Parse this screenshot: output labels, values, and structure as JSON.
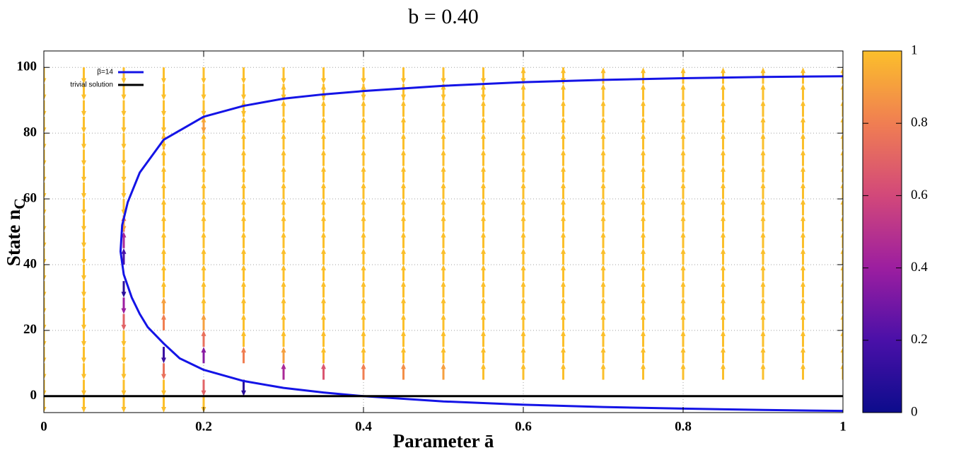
{
  "chart_data": {
    "type": "line",
    "title": "b = 0.40",
    "xlabel": "Parameter ā",
    "ylabel": {
      "text": "State n",
      "subscript": "C"
    },
    "xlim": [
      0,
      1
    ],
    "ylim": [
      -5,
      105
    ],
    "xticks": [
      0,
      0.2,
      0.4,
      0.6,
      0.8,
      1
    ],
    "yticks": [
      0,
      20,
      40,
      60,
      80,
      100
    ],
    "grid": true,
    "legend": "top left",
    "series": [
      {
        "name": "β=14",
        "color": "#1414e6",
        "x": [
          1.0,
          0.9,
          0.8,
          0.7,
          0.6,
          0.5,
          0.4,
          0.35,
          0.3,
          0.25,
          0.2,
          0.17,
          0.15,
          0.13,
          0.12,
          0.11,
          0.1,
          0.096,
          0.098,
          0.105,
          0.12,
          0.15,
          0.2,
          0.25,
          0.3,
          0.35,
          0.4,
          0.5,
          0.6,
          0.7,
          0.8,
          0.9,
          1.0
        ],
        "values": [
          -4.5,
          -4.2,
          -3.8,
          -3.3,
          -2.6,
          -1.6,
          0,
          1.1,
          2.5,
          4.6,
          8,
          11.5,
          16,
          21,
          25,
          30,
          37,
          44,
          52,
          59,
          68,
          78,
          85,
          88.3,
          90.5,
          91.8,
          92.8,
          94.4,
          95.5,
          96.2,
          96.7,
          97.1,
          97.3
        ]
      },
      {
        "name": "trivial solution",
        "color": "#000000",
        "x": [
          0,
          1
        ],
        "values": [
          0,
          0
        ]
      }
    ],
    "field": {
      "x": [
        0,
        0.05,
        0.1,
        0.15,
        0.2,
        0.25,
        0.3,
        0.35,
        0.4,
        0.45,
        0.5,
        0.55,
        0.6,
        0.65,
        0.7,
        0.75,
        0.8,
        0.85,
        0.9,
        0.95,
        1
      ],
      "y": [
        0,
        5,
        10,
        15,
        20,
        25,
        30,
        35,
        40,
        45,
        50,
        55,
        60,
        65,
        70,
        75,
        80,
        85,
        90,
        95,
        100
      ],
      "direction": [
        [
          -1,
          -1,
          -1,
          -1,
          -1,
          -1,
          -1,
          -1,
          -1,
          -1,
          -1,
          -1,
          -1,
          -1,
          -1,
          -1,
          -1,
          -1,
          -1,
          -1,
          -1
        ],
        [
          -1,
          -1,
          -1,
          -1,
          -1,
          -1,
          -1,
          -1,
          -1,
          -1,
          -1,
          -1,
          -1,
          -1,
          -1,
          -1,
          -1,
          -1,
          -1,
          -1,
          -1
        ],
        [
          -1,
          -1,
          -1,
          -1,
          -1,
          -1,
          -1,
          -1,
          1,
          1,
          1,
          -1,
          -1,
          -1,
          -1,
          -1,
          -1,
          -1,
          -1,
          -1,
          -1
        ],
        [
          -1,
          -1,
          -1,
          -1,
          1,
          1,
          1,
          1,
          1,
          1,
          1,
          1,
          1,
          1,
          1,
          1,
          -1,
          -1,
          -1,
          -1,
          -1
        ],
        [
          -1,
          -1,
          1,
          1,
          1,
          1,
          1,
          1,
          1,
          1,
          1,
          1,
          1,
          1,
          1,
          1,
          1,
          -1,
          -1,
          -1,
          -1
        ],
        [
          null,
          -1,
          1,
          1,
          1,
          1,
          1,
          1,
          1,
          1,
          1,
          1,
          1,
          1,
          1,
          1,
          1,
          1,
          -1,
          -1,
          -1
        ],
        [
          null,
          1,
          1,
          1,
          1,
          1,
          1,
          1,
          1,
          1,
          1,
          1,
          1,
          1,
          1,
          1,
          1,
          1,
          1,
          -1,
          -1
        ],
        [
          null,
          1,
          1,
          1,
          1,
          1,
          1,
          1,
          1,
          1,
          1,
          1,
          1,
          1,
          1,
          1,
          1,
          1,
          1,
          -1,
          -1
        ],
        [
          null,
          1,
          1,
          1,
          1,
          1,
          1,
          1,
          1,
          1,
          1,
          1,
          1,
          1,
          1,
          1,
          1,
          1,
          1,
          -1,
          -1
        ],
        [
          null,
          1,
          1,
          1,
          1,
          1,
          1,
          1,
          1,
          1,
          1,
          1,
          1,
          1,
          1,
          1,
          1,
          1,
          1,
          -1,
          -1
        ],
        [
          null,
          1,
          1,
          1,
          1,
          1,
          1,
          1,
          1,
          1,
          1,
          1,
          1,
          1,
          1,
          1,
          1,
          1,
          1,
          -1,
          -1
        ],
        [
          null,
          1,
          1,
          1,
          1,
          1,
          1,
          1,
          1,
          1,
          1,
          1,
          1,
          1,
          1,
          1,
          1,
          1,
          1,
          -1,
          -1
        ],
        [
          null,
          1,
          1,
          1,
          1,
          1,
          1,
          1,
          1,
          1,
          1,
          1,
          1,
          1,
          1,
          1,
          1,
          1,
          1,
          1,
          -1
        ],
        [
          null,
          1,
          1,
          1,
          1,
          1,
          1,
          1,
          1,
          1,
          1,
          1,
          1,
          1,
          1,
          1,
          1,
          1,
          1,
          1,
          -1
        ],
        [
          null,
          1,
          1,
          1,
          1,
          1,
          1,
          1,
          1,
          1,
          1,
          1,
          1,
          1,
          1,
          1,
          1,
          1,
          1,
          1,
          null
        ],
        [
          null,
          1,
          1,
          1,
          1,
          1,
          1,
          1,
          1,
          1,
          1,
          1,
          1,
          1,
          1,
          1,
          1,
          1,
          1,
          1,
          null
        ],
        [
          null,
          1,
          1,
          1,
          1,
          1,
          1,
          1,
          1,
          1,
          1,
          1,
          1,
          1,
          1,
          1,
          1,
          1,
          1,
          1,
          null
        ],
        [
          null,
          1,
          1,
          1,
          1,
          1,
          1,
          1,
          1,
          1,
          1,
          1,
          1,
          1,
          1,
          1,
          1,
          1,
          1,
          1,
          null
        ],
        [
          null,
          1,
          1,
          1,
          1,
          1,
          1,
          1,
          1,
          1,
          1,
          1,
          1,
          1,
          1,
          1,
          1,
          1,
          1,
          1,
          null
        ],
        [
          null,
          1,
          1,
          1,
          1,
          1,
          1,
          1,
          1,
          1,
          1,
          1,
          1,
          1,
          1,
          1,
          1,
          1,
          1,
          1,
          null
        ],
        [
          null,
          1,
          1,
          1,
          1,
          1,
          1,
          1,
          1,
          1,
          1,
          1,
          1,
          1,
          1,
          1,
          1,
          1,
          1,
          1,
          null
        ]
      ],
      "magnitude": [
        [
          1,
          1,
          1,
          1,
          1,
          1,
          1,
          1,
          1,
          1,
          1,
          1,
          1,
          1,
          1,
          1,
          1,
          1,
          1,
          1,
          1
        ],
        [
          1,
          1,
          1,
          1,
          1,
          1,
          1,
          1,
          1,
          1,
          1,
          1,
          1,
          1,
          1,
          1,
          1,
          1,
          1,
          1,
          1
        ],
        [
          1,
          1,
          1,
          1,
          1,
          0.7,
          0.4,
          0.1,
          0.2,
          0.45,
          0.7,
          0.9,
          1,
          1,
          1,
          1,
          1,
          1,
          1,
          1,
          1
        ],
        [
          1,
          1,
          0.75,
          0.15,
          0.8,
          0.9,
          1,
          1,
          1,
          1,
          1,
          1,
          1,
          1,
          1,
          0.9,
          1,
          1,
          1,
          1,
          1
        ],
        [
          1,
          0.7,
          0.35,
          0.75,
          0.9,
          1,
          1,
          1,
          1,
          1,
          1,
          1,
          1,
          1,
          1,
          1,
          1,
          0.9,
          1,
          1,
          1
        ],
        [
          null,
          0.1,
          0.8,
          1,
          1,
          1,
          1,
          1,
          1,
          1,
          1,
          1,
          1,
          1,
          1,
          1,
          1,
          1,
          1,
          1,
          1
        ],
        [
          null,
          0.45,
          0.9,
          1,
          1,
          1,
          1,
          1,
          1,
          1,
          1,
          1,
          1,
          1,
          1,
          1,
          1,
          1,
          1,
          1,
          1
        ],
        [
          null,
          0.65,
          1,
          1,
          1,
          1,
          1,
          1,
          1,
          1,
          1,
          1,
          1,
          1,
          1,
          1,
          1,
          1,
          1,
          1,
          1
        ],
        [
          null,
          0.8,
          1,
          1,
          1,
          1,
          1,
          1,
          1,
          1,
          1,
          1,
          1,
          1,
          1,
          1,
          1,
          1,
          1,
          1,
          1
        ],
        [
          null,
          0.85,
          1,
          1,
          1,
          1,
          1,
          1,
          1,
          1,
          1,
          1,
          1,
          1,
          1,
          1,
          1,
          1,
          1,
          1,
          1
        ],
        [
          null,
          0.9,
          1,
          1,
          1,
          1,
          1,
          1,
          1,
          1,
          1,
          1,
          1,
          1,
          1,
          1,
          1,
          1,
          1,
          1,
          1
        ],
        [
          null,
          1,
          1,
          1,
          1,
          1,
          1,
          1,
          1,
          1,
          1,
          1,
          1,
          1,
          1,
          1,
          1,
          1,
          1,
          1,
          1
        ],
        [
          null,
          1,
          1,
          1,
          1,
          1,
          1,
          1,
          1,
          1,
          1,
          1,
          1,
          1,
          1,
          1,
          1,
          1,
          1,
          1,
          1
        ],
        [
          null,
          1,
          1,
          1,
          1,
          1,
          1,
          1,
          1,
          1,
          1,
          1,
          1,
          1,
          1,
          1,
          1,
          1,
          1,
          1,
          1
        ],
        [
          null,
          1,
          1,
          1,
          1,
          1,
          1,
          1,
          1,
          1,
          1,
          1,
          1,
          1,
          1,
          1,
          1,
          1,
          1,
          1,
          null
        ],
        [
          null,
          1,
          1,
          1,
          1,
          1,
          1,
          1,
          1,
          1,
          1,
          1,
          1,
          1,
          1,
          1,
          1,
          1,
          1,
          1,
          null
        ],
        [
          null,
          1,
          1,
          1,
          1,
          1,
          1,
          1,
          1,
          1,
          1,
          1,
          1,
          1,
          1,
          1,
          1,
          1,
          1,
          1,
          null
        ],
        [
          null,
          1,
          1,
          1,
          1,
          1,
          1,
          1,
          1,
          1,
          1,
          1,
          1,
          1,
          1,
          1,
          1,
          1,
          1,
          1,
          null
        ],
        [
          null,
          1,
          1,
          1,
          1,
          1,
          1,
          1,
          1,
          1,
          1,
          1,
          1,
          1,
          1,
          1,
          1,
          1,
          1,
          1,
          null
        ],
        [
          null,
          1,
          1,
          1,
          1,
          1,
          1,
          1,
          1,
          1,
          1,
          1,
          1,
          1,
          1,
          1,
          1,
          1,
          1,
          1,
          null
        ],
        [
          null,
          1,
          1,
          1,
          1,
          1,
          1,
          1,
          1,
          1,
          1,
          1,
          1,
          1,
          1,
          1,
          1,
          1,
          1,
          1,
          null
        ]
      ]
    },
    "colorbar": {
      "lim": [
        0,
        1
      ],
      "ticks": [
        0,
        0.2,
        0.4,
        0.6,
        0.8,
        1
      ],
      "colors": [
        "#0c0c8c",
        "#4a10a8",
        "#9c1ea0",
        "#d2487a",
        "#f07e52",
        "#fbbf2b"
      ]
    }
  }
}
